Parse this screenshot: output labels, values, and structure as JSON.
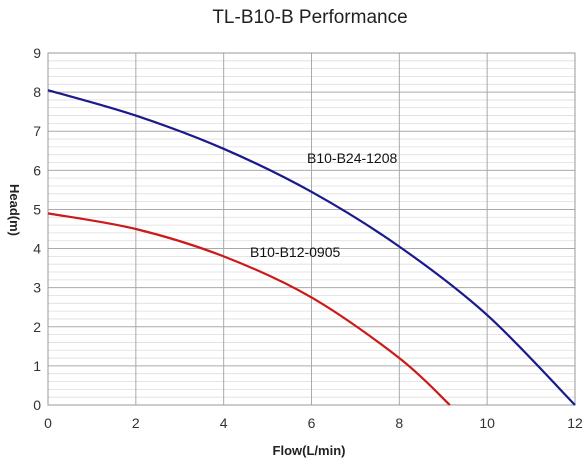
{
  "chart_data": {
    "type": "line",
    "title": "TL-B10-B Performance",
    "xlabel": "Flow(L/min)",
    "ylabel": "Head(m)",
    "xlim": [
      0,
      12
    ],
    "ylim": [
      0,
      9
    ],
    "x_ticks": [
      "0",
      "2",
      "4",
      "6",
      "8",
      "10",
      "12"
    ],
    "y_ticks": [
      "0",
      "1",
      "2",
      "3",
      "4",
      "5",
      "6",
      "7",
      "8",
      "9"
    ],
    "grid": true,
    "legend": "none",
    "series": [
      {
        "name": "B10-B24-1208",
        "color": "#1a1a8c",
        "x": [
          0,
          2,
          4,
          6,
          8,
          10,
          12
        ],
        "y": [
          8.05,
          7.4,
          6.55,
          5.45,
          4.05,
          2.3,
          0
        ]
      },
      {
        "name": "B10-B12-0905",
        "color": "#cc1a1a",
        "x": [
          0,
          2,
          4,
          6,
          8,
          9.15
        ],
        "y": [
          4.9,
          4.5,
          3.8,
          2.75,
          1.2,
          0
        ]
      }
    ]
  }
}
